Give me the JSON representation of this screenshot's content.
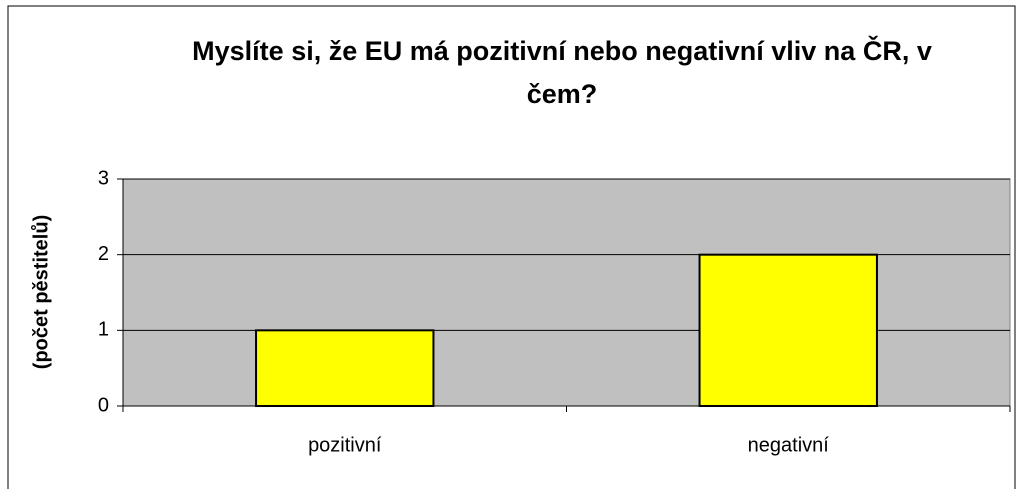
{
  "chart_data": {
    "type": "bar",
    "title": "Myslíte si, že EU má pozitivní nebo negativní vliv na ČR, v čem?",
    "y_label": "(počet pěstitelů)",
    "categories": [
      "pozitivní",
      "negativní"
    ],
    "values": [
      1,
      2
    ],
    "color": "#ffff00",
    "ylim": [
      0,
      3
    ],
    "yticks": [
      0,
      1,
      2,
      3
    ],
    "grid": true
  }
}
